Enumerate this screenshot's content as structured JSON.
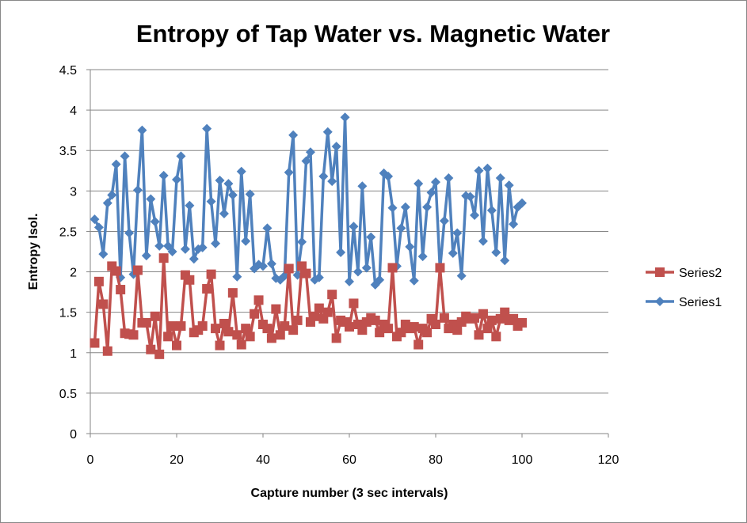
{
  "chart_data": {
    "type": "line",
    "title": "Entropy of Tap Water vs. Magnetic Water",
    "xlabel": "Capture number (3 sec intervals)",
    "ylabel": "Entropy Isol.",
    "xlim": [
      0,
      120
    ],
    "ylim": [
      0,
      4.5
    ],
    "xticks": [
      0,
      20,
      40,
      60,
      80,
      100,
      120
    ],
    "yticks": [
      0,
      0.5,
      1,
      1.5,
      2,
      2.5,
      3,
      3.5,
      4,
      4.5
    ],
    "grid": "horizontal",
    "legend": "right",
    "series": [
      {
        "name": "Series2",
        "color": "#C0504D",
        "marker": "square",
        "values": [
          1.12,
          1.88,
          1.6,
          1.02,
          2.07,
          2.01,
          1.78,
          1.24,
          1.23,
          1.22,
          2.02,
          1.37,
          1.37,
          1.04,
          1.45,
          0.98,
          2.17,
          1.2,
          1.33,
          1.09,
          1.33,
          1.96,
          1.9,
          1.25,
          1.28,
          1.33,
          1.79,
          1.97,
          1.3,
          1.09,
          1.36,
          1.26,
          1.74,
          1.22,
          1.1,
          1.3,
          1.2,
          1.48,
          1.65,
          1.35,
          1.3,
          1.18,
          1.54,
          1.22,
          1.33,
          2.04,
          1.28,
          1.4,
          2.07,
          1.98,
          1.38,
          1.45,
          1.55,
          1.42,
          1.5,
          1.72,
          1.18,
          1.4,
          1.38,
          1.32,
          1.61,
          1.35,
          1.28,
          1.38,
          1.43,
          1.4,
          1.25,
          1.35,
          1.3,
          2.05,
          1.2,
          1.25,
          1.35,
          1.3,
          1.32,
          1.1,
          1.3,
          1.25,
          1.42,
          1.35,
          2.05,
          1.43,
          1.3,
          1.35,
          1.28,
          1.38,
          1.45,
          1.42,
          1.43,
          1.22,
          1.48,
          1.3,
          1.4,
          1.2,
          1.42,
          1.5,
          1.4,
          1.42,
          1.33,
          1.37
        ]
      },
      {
        "name": "Series1",
        "color": "#4F81BD",
        "marker": "diamond",
        "values": [
          2.65,
          2.55,
          2.22,
          2.85,
          2.95,
          3.33,
          1.93,
          3.43,
          2.48,
          1.97,
          3.01,
          3.75,
          2.2,
          2.9,
          2.62,
          2.32,
          3.19,
          2.32,
          2.25,
          3.14,
          3.43,
          2.28,
          2.82,
          2.16,
          2.28,
          2.3,
          3.77,
          2.87,
          2.35,
          3.13,
          2.72,
          3.09,
          2.95,
          1.94,
          3.24,
          2.38,
          2.96,
          2.04,
          2.09,
          2.07,
          2.54,
          2.1,
          1.92,
          1.9,
          1.95,
          3.23,
          3.69,
          1.96,
          2.37,
          3.37,
          3.48,
          1.9,
          1.93,
          3.18,
          3.73,
          3.12,
          3.55,
          2.24,
          3.91,
          1.88,
          2.56,
          2.0,
          3.06,
          2.05,
          2.43,
          1.84,
          1.9,
          3.22,
          3.18,
          2.79,
          2.07,
          2.54,
          2.8,
          2.31,
          1.89,
          3.09,
          2.19,
          2.8,
          2.98,
          3.11,
          2.03,
          2.63,
          3.16,
          2.23,
          2.48,
          1.95,
          2.94,
          2.93,
          2.7,
          3.25,
          2.38,
          3.28,
          2.76,
          2.24,
          3.16,
          2.14,
          3.07,
          2.59,
          2.8,
          2.85
        ]
      }
    ]
  }
}
